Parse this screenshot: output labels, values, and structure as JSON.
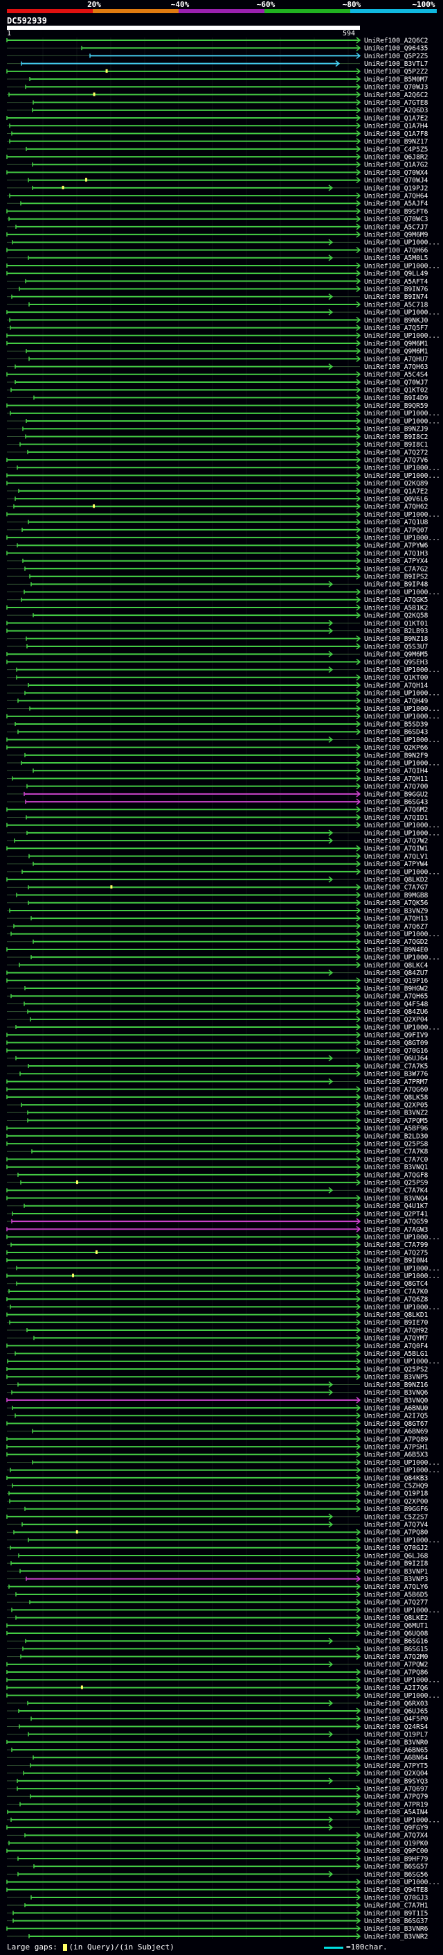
{
  "header": {
    "scale_labels": [
      "20%",
      "~40%",
      "~60%",
      "~80%",
      "~100%"
    ],
    "scale_colors": [
      "#e01010",
      "#e07a10",
      "#9a20b0",
      "#20b020",
      "#10b8e0"
    ],
    "query_name": "DC592939",
    "query_start": "1",
    "query_end": "594"
  },
  "legend": {
    "large_gaps": "Large gaps:",
    "in_query": "(in Query)/",
    "in_subject": "(in Subject)",
    "scale_text": "=100char."
  },
  "colors": {
    "background": "#000008",
    "hit_green": "#44cc44",
    "hit_magenta": "#cc44cc",
    "hit_cyan": "#44ccee",
    "dark_line": "#335533",
    "gap_query": "#ffff66"
  },
  "chart_data": {
    "type": "alignment-map",
    "title": "DC592939",
    "query_length": 594,
    "scale": "100 char",
    "hits": [
      "UniRef100_A2Q6C2",
      "UniRef100_Q96435",
      "UniRef100_Q5P2Z5",
      "UniRef100_B3VTL7",
      "UniRef100_Q5P2Z2",
      "UniRef100_B5M0M7",
      "UniRef100_Q70WJ3",
      "UniRef100_A2Q6C2",
      "UniRef100_A7GTE8",
      "UniRef100_A2Q6D3",
      "UniRef100_Q1A7E2",
      "UniRef100_Q1A7H4",
      "UniRef100_Q1A7F8",
      "UniRef100_B9NZ17",
      "UniRef100_C4P5Z5",
      "UniRef100_Q6J8R2",
      "UniRef100_Q1A7G2",
      "UniRef100_Q70WX4",
      "UniRef100_Q70WJ4",
      "UniRef100_Q19PJ2",
      "UniRef100_A7QH64",
      "UniRef100_A5AJF4",
      "UniRef100_B9SFT6",
      "UniRef100_Q70WC3",
      "UniRef100_A5C7J7",
      "UniRef100_Q9M6M9",
      "UniRef100_UP1000...",
      "UniRef100_A7QH66",
      "UniRef100_A5M0L5",
      "UniRef100_UP1000...",
      "UniRef100_Q9LL49",
      "UniRef100_A5AFT4",
      "UniRef100_B9IN76",
      "UniRef100_B9IN74",
      "UniRef100_A5C718",
      "UniRef100_UP1000...",
      "UniRef100_B9NKJ0",
      "UniRef100_A7Q5F7",
      "UniRef100_UP1000...",
      "UniRef100_Q9M6M1",
      "UniRef100_Q9M6M1",
      "UniRef100_A7QHU7",
      "UniRef100_A7QH63",
      "UniRef100_A5C4S4",
      "UniRef100_Q70WJ7",
      "UniRef100_Q1KT02",
      "UniRef100_B9I4D9",
      "UniRef100_B9QR59",
      "UniRef100_UP1000...",
      "UniRef100_UP1000...",
      "UniRef100_B9NZJ9",
      "UniRef100_B9I8C2",
      "UniRef100_B9I8C1",
      "UniRef100_A7Q272",
      "UniRef100_A7Q7V6",
      "UniRef100_UP1000...",
      "UniRef100_UP1000...",
      "UniRef100_Q2KQ89",
      "UniRef100_Q1A7E2",
      "UniRef100_Q0V6L6",
      "UniRef100_A7QH62",
      "UniRef100_UP1000...",
      "UniRef100_A7Q1U8",
      "UniRef100_A7PQ07",
      "UniRef100_UP1000...",
      "UniRef100_A7PYW6",
      "UniRef100_A7Q1H3",
      "UniRef100_A7PYX4",
      "UniRef100_C7A7G2",
      "UniRef100_B9IPS2",
      "UniRef100_B9IP48",
      "UniRef100_UP1000...",
      "UniRef100_A7QGK5",
      "UniRef100_A5B1K2",
      "UniRef100_Q2KQ58",
      "UniRef100_Q1KT01",
      "UniRef100_B2LB93",
      "UniRef100_B9NZ18",
      "UniRef100_Q5S3U7",
      "UniRef100_Q9M6M5",
      "UniRef100_Q9SEH3",
      "UniRef100_UP1000...",
      "UniRef100_Q1KT00",
      "UniRef100_A7QH14",
      "UniRef100_UP1000...",
      "UniRef100_A7QH49",
      "UniRef100_UP1000...",
      "UniRef100_UP1000...",
      "UniRef100_B5SD39",
      "UniRef100_B6SD43",
      "UniRef100_UP1000...",
      "UniRef100_Q2KP66",
      "UniRef100_B9N2F9",
      "UniRef100_UP1000...",
      "UniRef100_A7QIH4",
      "UniRef100_A7QH11",
      "UniRef100_A7Q700",
      "UniRef100_B9GGU2",
      "UniRef100_B6SG43",
      "UniRef100_A7Q6M2",
      "UniRef100_A7QID1",
      "UniRef100_UP1000...",
      "UniRef100_UP1000...",
      "UniRef100_A7Q7W2",
      "UniRef100_A7QIW1",
      "UniRef100_A7QLV1",
      "UniRef100_A7PYW4",
      "UniRef100_UP1000...",
      "UniRef100_Q8LKD2",
      "UniRef100_C7A7G7",
      "UniRef100_B9MGB8",
      "UniRef100_A7QK56",
      "UniRef100_B3VNZ9",
      "UniRef100_A7QH13",
      "UniRef100_A7Q6Z7",
      "UniRef100_UP1000...",
      "UniRef100_A7QGD2",
      "UniRef100_B9N4E0",
      "UniRef100_UP1000...",
      "UniRef100_Q8LKC4",
      "UniRef100_Q84ZU7",
      "UniRef100_Q19P16",
      "UniRef100_B9HGW2",
      "UniRef100_A7QH65",
      "UniRef100_Q4F548",
      "UniRef100_Q84ZU6",
      "UniRef100_Q2XP04",
      "UniRef100_UP1000...",
      "UniRef100_Q9FIV9",
      "UniRef100_Q8GT09",
      "UniRef100_Q70G16",
      "UniRef100_Q6UJ64",
      "UniRef100_C7A7K5",
      "UniRef100_B3W776",
      "UniRef100_A7PRM7",
      "UniRef100_A7QG60",
      "UniRef100_Q8LK58",
      "UniRef100_Q2XP05",
      "UniRef100_B3VNZ2",
      "UniRef100_A7PQM5",
      "UniRef100_A5BF96",
      "UniRef100_B2LD30",
      "UniRef100_Q25PS8",
      "UniRef100_C7A7K8",
      "UniRef100_C7A7C0",
      "UniRef100_B3VNQ1",
      "UniRef100_A7QGF8",
      "UniRef100_Q25PS9",
      "UniRef100_C7A7K4",
      "UniRef100_B3VNQ4",
      "UniRef100_Q4U1K7",
      "UniRef100_Q2PT41",
      "UniRef100_A7QG59",
      "UniRef100_A7AGW3",
      "UniRef100_UP1000...",
      "UniRef100_C7A799",
      "UniRef100_A7Q275",
      "UniRef100_B9I0N4",
      "UniRef100_UP1000...",
      "UniRef100_UP1000...",
      "UniRef100_Q8GTC4",
      "UniRef100_C7A7K0",
      "UniRef100_A7Q6Z8",
      "UniRef100_UP1000...",
      "UniRef100_Q8LKD1",
      "UniRef100_B9IE70",
      "UniRef100_A7QH92",
      "UniRef100_A7QYM7",
      "UniRef100_A7Q0F4",
      "UniRef100_A5BLG1",
      "UniRef100_UP1000...",
      "UniRef100_Q25PS2",
      "UniRef100_B3VNP5",
      "UniRef100_B9NZ16",
      "UniRef100_B3VNQ6",
      "UniRef100_B3VNQ0",
      "UniRef100_A6BNU0",
      "UniRef100_A2I7Q5",
      "UniRef100_Q8GT67",
      "UniRef100_A6BN69",
      "UniRef100_A7PQ89",
      "UniRef100_A7PSH1",
      "UniRef100_A6B5X3",
      "UniRef100_UP1000...",
      "UniRef100_UP1000...",
      "UniRef100_Q84KB3",
      "UniRef100_C5ZHQ9",
      "UniRef100_Q19P18",
      "UniRef100_Q2XP00",
      "UniRef100_B9GGF6",
      "UniRef100_C5Z2S7",
      "UniRef100_A7Q7V4",
      "UniRef100_A7PQ80",
      "UniRef100_UP1000...",
      "UniRef100_Q70GJ2",
      "UniRef100_Q6LJ68",
      "UniRef100_B9I2I8",
      "UniRef100_B3VNP1",
      "UniRef100_B3VNP3",
      "UniRef100_A7QLY6",
      "UniRef100_A5B6D5",
      "UniRef100_A7Q277",
      "UniRef100_UP1000...",
      "UniRef100_Q8LKE2",
      "UniRef100_Q6MUT1",
      "UniRef100_Q6UQ08",
      "UniRef100_B6SG16",
      "UniRef100_B6SG15",
      "UniRef100_A7Q2M0",
      "UniRef100_A7PQW2",
      "UniRef100_A7PQ86",
      "UniRef100_UP1000...",
      "UniRef100_A2I7Q6",
      "UniRef100_UP1000...",
      "UniRef100_Q6RX03",
      "UniRef100_Q6UJ65",
      "UniRef100_Q4F5P0",
      "UniRef100_Q24RS4",
      "UniRef100_Q19PL7",
      "UniRef100_B3VNR0",
      "UniRef100_A6BN65",
      "UniRef100_A6BN64",
      "UniRef100_A7PYT5",
      "UniRef100_Q2XQ04",
      "UniRef100_B9SYQ3",
      "UniRef100_A7Q697",
      "UniRef100_A7PQ79",
      "UniRef100_A7PR19",
      "UniRef100_A5AIN4",
      "UniRef100_UP1000...",
      "UniRef100_Q9FGY9",
      "UniRef100_A7Q7X4",
      "UniRef100_Q19PK0",
      "UniRef100_Q9PC00",
      "UniRef100_B9HF79",
      "UniRef100_B6SG57",
      "UniRef100_B6SG56",
      "UniRef100_UP1000...",
      "UniRef100_Q94TE8",
      "UniRef100_Q70GJ3",
      "UniRef100_C7A7H1",
      "UniRef100_B9T1I5",
      "UniRef100_B6SG37",
      "UniRef100_B3VNR6",
      "UniRef100_B3VNR2"
    ]
  }
}
